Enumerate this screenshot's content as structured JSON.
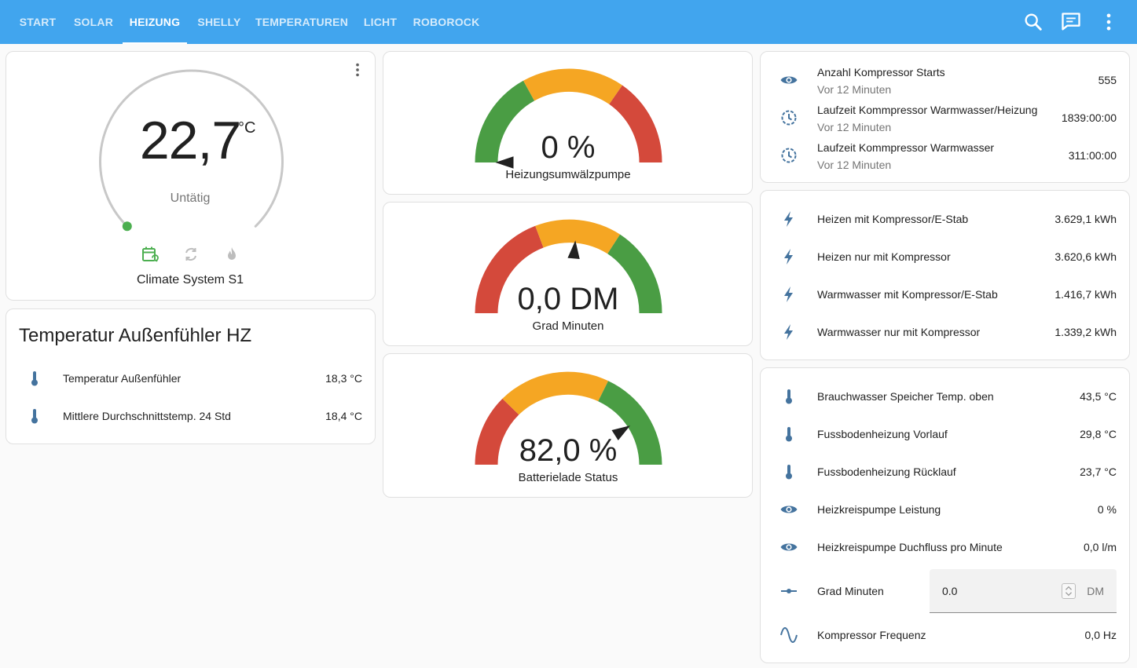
{
  "nav": {
    "tabs": [
      "START",
      "SOLAR",
      "HEIZUNG",
      "SHELLY",
      "TEMPERATUREN",
      "LICHT",
      "ROBOROCK"
    ],
    "active_tab": "HEIZUNG",
    "icons": [
      "search-icon",
      "chat-icon",
      "more-vert-icon"
    ]
  },
  "thermostat": {
    "value": "22,7",
    "unit": "°C",
    "state": "Untätig",
    "name": "Climate System S1",
    "modes": [
      "calendar-sync-icon",
      "sync-icon",
      "fire-icon"
    ],
    "accent_color": "#4caf50"
  },
  "outdoor": {
    "title": "Temperatur Außenfühler HZ",
    "rows": [
      {
        "icon": "thermometer-icon",
        "name": "Temperatur Außenfühler",
        "value": "18,3 °C"
      },
      {
        "icon": "thermometer-icon",
        "name": "Mittlere Durchschnittstemp. 24 Std",
        "value": "18,4 °C"
      }
    ]
  },
  "gauges": [
    {
      "value": "0 %",
      "label": "Heizungsumwälzpumpe",
      "level": 0.0
    },
    {
      "value": "0,0 DM",
      "label": "Grad Minuten",
      "level": 0.53
    },
    {
      "value": "82,0 %",
      "label": "Batterielade Status",
      "level": 0.82
    }
  ],
  "colors": {
    "green": "#4a9d44",
    "yellow": "#f5a623",
    "red": "#d4493b",
    "needle": "#212121",
    "icon": "#44739e"
  },
  "compressor": {
    "rows": [
      {
        "icon": "eye-icon",
        "name": "Anzahl Kompressor Starts",
        "sub": "Vor 12 Minuten",
        "value": "555"
      },
      {
        "icon": "clock-outline-icon",
        "name": "Laufzeit Kommpressor Warmwasser/Heizung",
        "sub": "Vor 12 Minuten",
        "value": "1839:00:00"
      },
      {
        "icon": "clock-outline-icon",
        "name": "Laufzeit Kommpressor Warmwasser",
        "sub": "Vor 12 Minuten",
        "value": "311:00:00"
      }
    ]
  },
  "energy": {
    "rows": [
      {
        "icon": "flash-icon",
        "name": "Heizen mit Kompressor/E-Stab",
        "value": "3.629,1 kWh"
      },
      {
        "icon": "flash-icon",
        "name": "Heizen nur mit Kompressor",
        "value": "3.620,6 kWh"
      },
      {
        "icon": "flash-icon",
        "name": "Warmwasser mit Kompressor/E-Stab",
        "value": "1.416,7 kWh"
      },
      {
        "icon": "flash-icon",
        "name": "Warmwasser nur mit Kompressor",
        "value": "1.339,2 kWh"
      }
    ]
  },
  "system": {
    "rows": [
      {
        "icon": "thermometer-icon",
        "name": "Brauchwasser Speicher Temp. oben",
        "value": "43,5 °C"
      },
      {
        "icon": "thermometer-icon",
        "name": "Fussbodenheizung Vorlauf",
        "value": "29,8 °C"
      },
      {
        "icon": "thermometer-icon",
        "name": "Fussbodenheizung Rücklauf",
        "value": "23,7 °C"
      },
      {
        "icon": "eye-icon",
        "name": "Heizkreispumpe Leistung",
        "value": "0 %"
      },
      {
        "icon": "eye-icon",
        "name": "Heizkreispumpe Duchfluss pro Minute",
        "value": "0,0 l/m"
      }
    ],
    "input_row": {
      "icon": "ray-vertex-icon",
      "name": "Grad Minuten",
      "value": "0.0",
      "unit": "DM"
    },
    "last_row": {
      "icon": "sine-wave-icon",
      "name": "Kompressor Frequenz",
      "value": "0,0 Hz"
    }
  }
}
